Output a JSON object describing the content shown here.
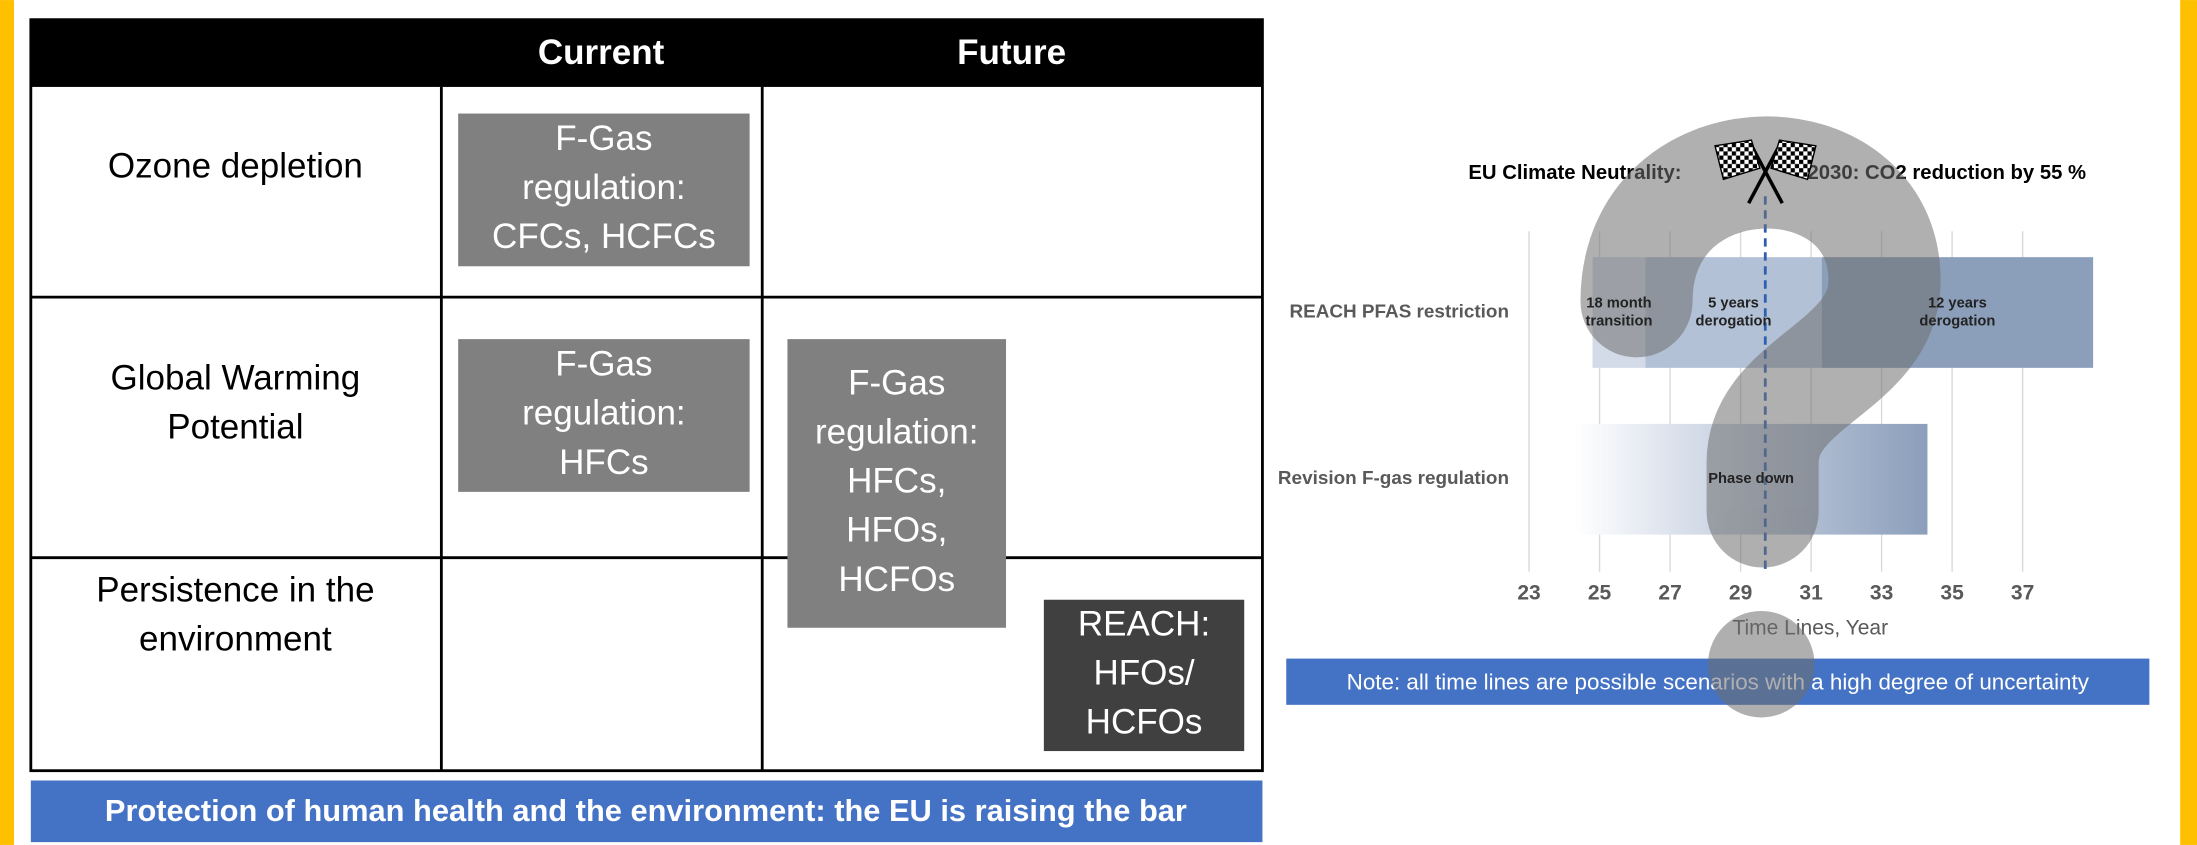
{
  "table": {
    "header": {
      "current": "Current",
      "future": "Future"
    },
    "rows": [
      {
        "lines": [
          "Ozone depletion"
        ]
      },
      {
        "lines": [
          "Global Warming",
          "Potential"
        ]
      },
      {
        "lines": [
          "Persistence in the",
          "environment"
        ]
      }
    ],
    "boxes": [
      {
        "lines": [
          "F-Gas",
          "regulation:",
          "CFCs, HCFCs"
        ]
      },
      {
        "lines": [
          "F-Gas",
          "regulation:",
          "HFCs"
        ]
      },
      {
        "lines": [
          "F-Gas",
          "regulation:",
          "HFCs,",
          "HFOs,",
          "HCFOs"
        ]
      },
      {
        "lines": [
          "REACH:",
          "HFOs/",
          "HCFOs"
        ]
      }
    ]
  },
  "footer": "Protection of human health and the environment: the EU is raising the bar",
  "chart_data": {
    "type": "timeline",
    "title_left": "EU Climate Neutrality:",
    "title_right": "2030: CO2 reduction by 55 %",
    "xlabel": "Time Lines, Year",
    "note": "Note: all time lines are possible scenarios with a high degree of uncertainty",
    "categories": [
      "REACH PFAS restriction",
      "Revision F-gas regulation"
    ],
    "xlim": [
      21.2,
      39.8
    ],
    "xticks": [
      23,
      25,
      27,
      29,
      31,
      33,
      35,
      37
    ],
    "grid": true,
    "marker": 29.7,
    "bars": [
      {
        "segments": [
          {
            "start": 24.8,
            "end": 26.3,
            "color": "#d3dbe8",
            "lines": [
              "18 month",
              "transition"
            ]
          },
          {
            "start": 26.3,
            "end": 31.3,
            "color": "#b3c1d6",
            "lines": [
              "5 years",
              "derogation"
            ]
          },
          {
            "start": 31.3,
            "end": 39.0,
            "color": "#8b9eba",
            "lines": [
              "12 years",
              "derogation"
            ]
          }
        ]
      },
      {
        "segments": [
          {
            "start": 24.3,
            "end": 34.3,
            "color": "#8b9eba",
            "gradient": true,
            "lines": [
              "Phase down"
            ]
          }
        ]
      }
    ]
  }
}
